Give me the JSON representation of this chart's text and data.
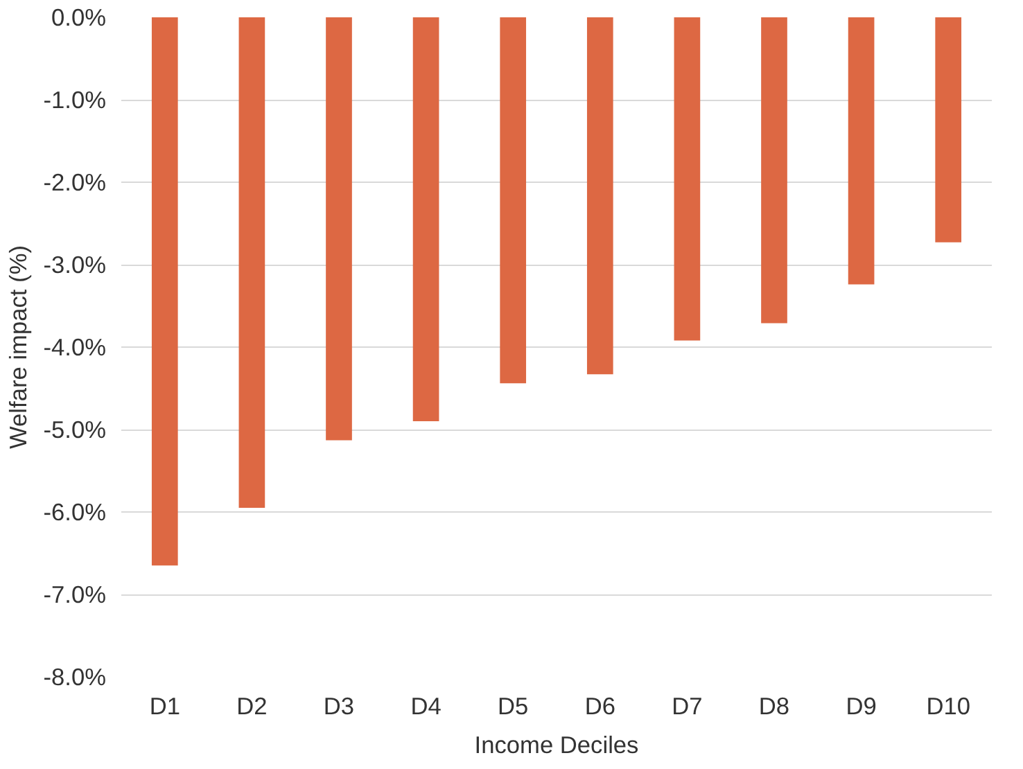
{
  "chart_data": {
    "type": "bar",
    "xlabel": "Income Deciles",
    "ylabel": "Welfare impact (%)",
    "categories": [
      "D1",
      "D2",
      "D3",
      "D4",
      "D5",
      "D6",
      "D7",
      "D8",
      "D9",
      "D10"
    ],
    "series": [
      {
        "color": "#dd6843",
        "values": [
          -6.65,
          -5.95,
          -5.13,
          -4.9,
          -4.44,
          -4.33,
          -3.92,
          -3.71,
          -3.24,
          -2.73
        ]
      }
    ],
    "ylim": [
      -8,
      0
    ],
    "yticks": [
      {
        "value": 0,
        "label": "0.0%"
      },
      {
        "value": -1,
        "label": "-1.0%"
      },
      {
        "value": -2,
        "label": "-2.0%"
      },
      {
        "value": -3,
        "label": "-3.0%"
      },
      {
        "value": -4,
        "label": "-4.0%"
      },
      {
        "value": -5,
        "label": "-5.0%"
      },
      {
        "value": -6,
        "label": "-6.0%"
      },
      {
        "value": -7,
        "label": "-7.0%"
      },
      {
        "value": -8,
        "label": "-8.0%"
      }
    ],
    "grid": "y"
  }
}
